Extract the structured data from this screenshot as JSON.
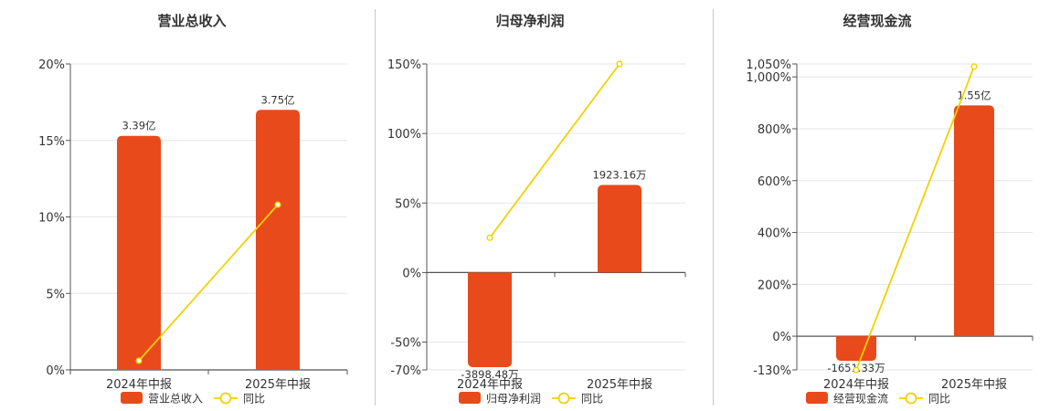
{
  "colors": {
    "bar": "#e84a1b",
    "line": "#f2d100",
    "grid": "#e6e6e6",
    "axis": "#555555"
  },
  "legend": {
    "line_label": "同比"
  },
  "chart_data": [
    {
      "type": "bar",
      "title": "营业总收入",
      "categories": [
        "2024年中报",
        "2025年中报"
      ],
      "yticks": [
        "20%",
        "15%",
        "10%",
        "5%",
        "0%"
      ],
      "ylim": [
        0,
        20
      ],
      "series": [
        {
          "name": "营业总收入",
          "kind": "bar",
          "values": [
            15.3,
            17.0
          ],
          "labels": [
            "3.39亿",
            "3.75亿"
          ]
        },
        {
          "name": "同比",
          "kind": "line",
          "values": [
            0.6,
            10.8
          ]
        }
      ],
      "legend_position": "bottom"
    },
    {
      "type": "bar",
      "title": "归母净利润",
      "categories": [
        "2024年中报",
        "2025年中报"
      ],
      "yticks": [
        "150%",
        "100%",
        "50%",
        "0%",
        "-50%",
        "-70%"
      ],
      "ylim": [
        -70,
        150
      ],
      "series": [
        {
          "name": "归母净利润",
          "kind": "bar",
          "values": [
            -68,
            63
          ],
          "labels": [
            "-3898.48万",
            "1923.16万"
          ]
        },
        {
          "name": "同比",
          "kind": "line",
          "values": [
            25,
            150
          ]
        }
      ],
      "legend_position": "bottom"
    },
    {
      "type": "bar",
      "title": "经营现金流",
      "categories": [
        "2024年中报",
        "2025年中报"
      ],
      "yticks": [
        "1,050%",
        "1,000%",
        "800%",
        "600%",
        "400%",
        "200%",
        "0%",
        "-130%"
      ],
      "ylim": [
        -130,
        1050
      ],
      "series": [
        {
          "name": "经营现金流",
          "kind": "bar",
          "values": [
            -95,
            890
          ],
          "labels": [
            "-1651.33万",
            "1.55亿"
          ]
        },
        {
          "name": "同比",
          "kind": "line",
          "values": [
            -130,
            1040
          ]
        }
      ],
      "legend_position": "bottom"
    }
  ]
}
